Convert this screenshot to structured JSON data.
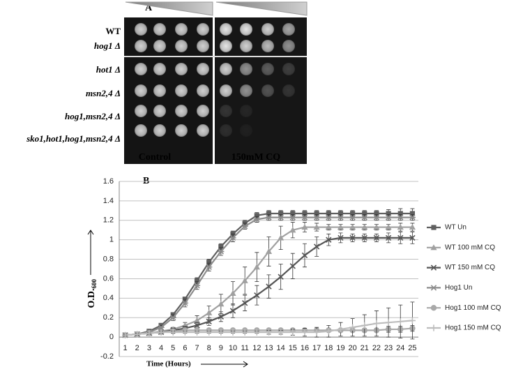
{
  "panel_a": {
    "label": "A",
    "strains": [
      "WT",
      "hog1 Δ",
      "hot1 Δ",
      "msn2,4 Δ",
      "hog1,msn2,4 Δ",
      "sko1,hot1,hog1,msn2,4 Δ"
    ],
    "conditions": [
      "Control",
      "150mM CQ"
    ]
  },
  "chart_data": {
    "type": "line",
    "panel_label": "B",
    "ylabel": "O.D.",
    "ylabel_subscript": "600",
    "xlabel": "Time (Hours)",
    "categories": [
      "1",
      "2",
      "3",
      "4",
      "5",
      "6",
      "7",
      "8",
      "9",
      "10",
      "11",
      "12",
      "13",
      "14",
      "15",
      "16",
      "17",
      "18",
      "19",
      "20",
      "21",
      "22",
      "23",
      "24",
      "25"
    ],
    "ylim": [
      -0.2,
      1.6
    ],
    "yticks": [
      -0.2,
      0,
      0.2,
      0.4,
      0.6,
      0.8,
      1,
      1.2,
      1.4,
      1.6
    ],
    "grid": true,
    "legend": "right",
    "series": [
      {
        "name": "WT Un",
        "color": "#5f5f5f",
        "marker": "square",
        "values": [
          0.02,
          0.03,
          0.06,
          0.12,
          0.23,
          0.39,
          0.58,
          0.77,
          0.93,
          1.06,
          1.17,
          1.25,
          1.27,
          1.27,
          1.27,
          1.27,
          1.27,
          1.27,
          1.27,
          1.27,
          1.27,
          1.27,
          1.27,
          1.27,
          1.27
        ],
        "errors": [
          0.01,
          0.01,
          0.01,
          0.01,
          0.02,
          0.02,
          0.03,
          0.03,
          0.03,
          0.03,
          0.03,
          0.03,
          0.03,
          0.03,
          0.03,
          0.03,
          0.03,
          0.03,
          0.03,
          0.03,
          0.03,
          0.03,
          0.04,
          0.05,
          0.05
        ]
      },
      {
        "name": "WT 100 mM CQ",
        "color": "#a0a0a0",
        "marker": "triangle",
        "values": [
          0.02,
          0.03,
          0.04,
          0.06,
          0.08,
          0.12,
          0.17,
          0.25,
          0.34,
          0.45,
          0.58,
          0.72,
          0.88,
          1.02,
          1.1,
          1.13,
          1.13,
          1.13,
          1.13,
          1.13,
          1.13,
          1.13,
          1.13,
          1.13,
          1.13
        ],
        "errors": [
          0.01,
          0.01,
          0.01,
          0.01,
          0.02,
          0.03,
          0.05,
          0.07,
          0.1,
          0.12,
          0.14,
          0.15,
          0.15,
          0.12,
          0.08,
          0.05,
          0.04,
          0.03,
          0.03,
          0.03,
          0.03,
          0.03,
          0.03,
          0.04,
          0.04
        ]
      },
      {
        "name": "WT 150 mM CQ",
        "color": "#555555",
        "marker": "x",
        "values": [
          0.02,
          0.03,
          0.04,
          0.05,
          0.07,
          0.09,
          0.12,
          0.16,
          0.21,
          0.27,
          0.35,
          0.43,
          0.52,
          0.62,
          0.73,
          0.84,
          0.93,
          1.0,
          1.02,
          1.02,
          1.02,
          1.02,
          1.02,
          1.02,
          1.02
        ],
        "errors": [
          0.01,
          0.01,
          0.01,
          0.01,
          0.02,
          0.02,
          0.03,
          0.04,
          0.05,
          0.07,
          0.08,
          0.1,
          0.12,
          0.13,
          0.13,
          0.12,
          0.1,
          0.06,
          0.05,
          0.04,
          0.04,
          0.04,
          0.05,
          0.06,
          0.06
        ]
      },
      {
        "name": "Hog1 Un",
        "color": "#8c8c8c",
        "marker": "asterisk",
        "values": [
          0.02,
          0.03,
          0.05,
          0.1,
          0.2,
          0.35,
          0.53,
          0.72,
          0.88,
          1.02,
          1.14,
          1.21,
          1.23,
          1.23,
          1.23,
          1.23,
          1.23,
          1.23,
          1.23,
          1.23,
          1.23,
          1.23,
          1.23,
          1.23,
          1.23
        ],
        "errors": [
          0.01,
          0.01,
          0.01,
          0.02,
          0.03,
          0.04,
          0.04,
          0.04,
          0.04,
          0.04,
          0.03,
          0.03,
          0.03,
          0.03,
          0.03,
          0.03,
          0.03,
          0.03,
          0.03,
          0.03,
          0.03,
          0.03,
          0.03,
          0.03,
          0.03
        ]
      },
      {
        "name": "Hog1 100 mM CQ",
        "color": "#a9a9a9",
        "marker": "circle",
        "values": [
          0.02,
          0.03,
          0.04,
          0.05,
          0.06,
          0.07,
          0.07,
          0.07,
          0.07,
          0.07,
          0.07,
          0.07,
          0.07,
          0.07,
          0.07,
          0.07,
          0.07,
          0.07,
          0.07,
          0.07,
          0.07,
          0.07,
          0.08,
          0.08,
          0.09
        ],
        "errors": [
          0.01,
          0.01,
          0.01,
          0.01,
          0.01,
          0.01,
          0.01,
          0.01,
          0.01,
          0.01,
          0.01,
          0.01,
          0.01,
          0.01,
          0.01,
          0.01,
          0.01,
          0.01,
          0.01,
          0.01,
          0.02,
          0.02,
          0.03,
          0.03,
          0.03
        ]
      },
      {
        "name": "Hog1 150 mM CQ",
        "color": "#bdbdbd",
        "marker": "plus",
        "values": [
          0.02,
          0.03,
          0.04,
          0.05,
          0.05,
          0.05,
          0.05,
          0.05,
          0.05,
          0.05,
          0.05,
          0.05,
          0.05,
          0.05,
          0.05,
          0.05,
          0.05,
          0.06,
          0.08,
          0.1,
          0.12,
          0.14,
          0.15,
          0.16,
          0.17
        ],
        "errors": [
          0.01,
          0.01,
          0.01,
          0.01,
          0.01,
          0.01,
          0.01,
          0.01,
          0.01,
          0.01,
          0.01,
          0.01,
          0.02,
          0.02,
          0.03,
          0.04,
          0.05,
          0.06,
          0.07,
          0.09,
          0.11,
          0.13,
          0.15,
          0.17,
          0.19
        ]
      }
    ]
  }
}
